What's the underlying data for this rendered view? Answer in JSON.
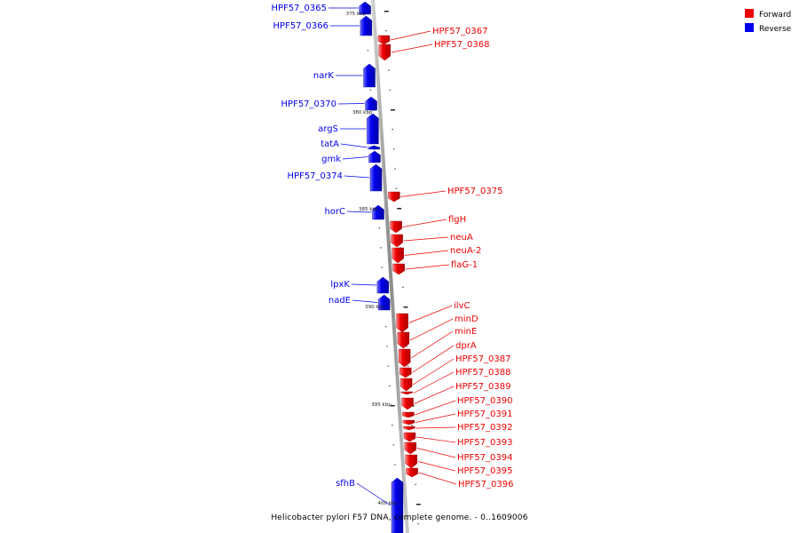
{
  "legend": [
    {
      "label": "Forward",
      "color": "#ee0000"
    },
    {
      "label": "Reverse",
      "color": "#0000ee"
    }
  ],
  "colors": {
    "forward": "#ee0000",
    "reverse": "#0000ee",
    "backbone": "#9a9a9a"
  },
  "scale_labels": [
    "375 kbp",
    "380 kbp",
    "385 kbp",
    "390 kbp",
    "395 kbp",
    "400 kbp"
  ],
  "footer": "Helicobacter pylori F57 DNA, complete genome. - 0..1609006",
  "genes": [
    {
      "label": "HPF57_0365",
      "strand": "reverse"
    },
    {
      "label": "HPF57_0366",
      "strand": "reverse"
    },
    {
      "label": "HPF57_0367",
      "strand": "forward"
    },
    {
      "label": "HPF57_0368",
      "strand": "forward"
    },
    {
      "label": "narK",
      "strand": "reverse"
    },
    {
      "label": "HPF57_0370",
      "strand": "reverse"
    },
    {
      "label": "argS",
      "strand": "reverse"
    },
    {
      "label": "tatA",
      "strand": "reverse"
    },
    {
      "label": "gmk",
      "strand": "reverse"
    },
    {
      "label": "HPF57_0374",
      "strand": "reverse"
    },
    {
      "label": "HPF57_0375",
      "strand": "forward"
    },
    {
      "label": "horC",
      "strand": "reverse"
    },
    {
      "label": "flgH",
      "strand": "forward"
    },
    {
      "label": "neuA",
      "strand": "forward"
    },
    {
      "label": "neuA-2",
      "strand": "forward"
    },
    {
      "label": "flaG-1",
      "strand": "forward"
    },
    {
      "label": "lpxK",
      "strand": "reverse"
    },
    {
      "label": "nadE",
      "strand": "reverse"
    },
    {
      "label": "ilvC",
      "strand": "forward"
    },
    {
      "label": "minD",
      "strand": "forward"
    },
    {
      "label": "minE",
      "strand": "forward"
    },
    {
      "label": "dprA",
      "strand": "forward"
    },
    {
      "label": "HPF57_0387",
      "strand": "forward"
    },
    {
      "label": "HPF57_0388",
      "strand": "forward"
    },
    {
      "label": "HPF57_0389",
      "strand": "forward"
    },
    {
      "label": "HPF57_0390",
      "strand": "forward"
    },
    {
      "label": "HPF57_0391",
      "strand": "forward"
    },
    {
      "label": "HPF57_0392",
      "strand": "forward"
    },
    {
      "label": "HPF57_0393",
      "strand": "forward"
    },
    {
      "label": "HPF57_0394",
      "strand": "forward"
    },
    {
      "label": "HPF57_0395",
      "strand": "forward"
    },
    {
      "label": "HPF57_0396",
      "strand": "forward"
    },
    {
      "label": "sfhB",
      "strand": "reverse"
    }
  ]
}
